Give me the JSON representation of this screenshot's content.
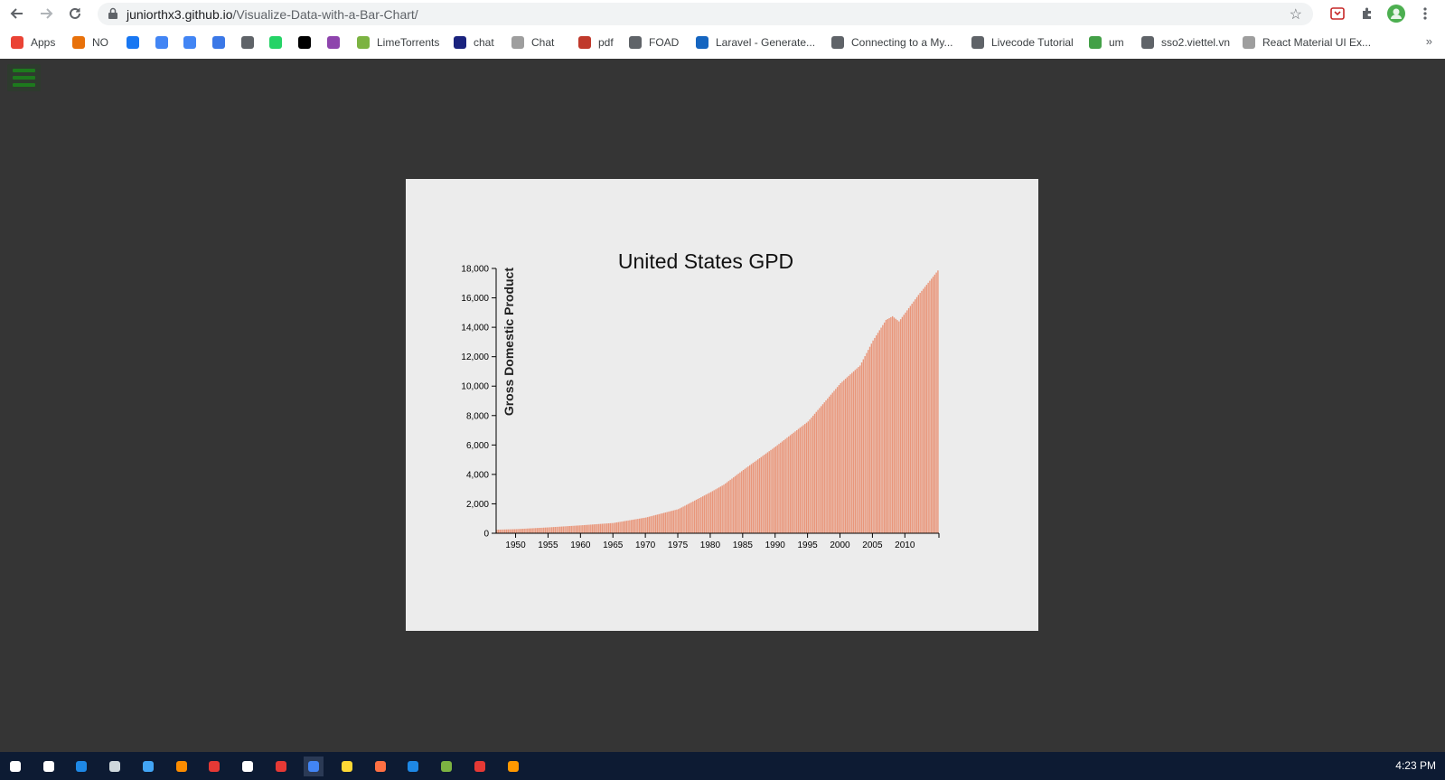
{
  "browser": {
    "url_host": "juniorthx3.github.io",
    "url_path": "/Visualize-Data-with-a-Bar-Chart/",
    "bookmarks": [
      {
        "label": "Apps",
        "color": "#ea4335"
      },
      {
        "label": "NO",
        "color": "#e8710a"
      },
      {
        "label": "",
        "color": "#1877f2"
      },
      {
        "label": "",
        "color": "#4285f4"
      },
      {
        "label": "",
        "color": "#4285f4"
      },
      {
        "label": "",
        "color": "#3b78e7"
      },
      {
        "label": "",
        "color": "#5f6368"
      },
      {
        "label": "",
        "color": "#25d366"
      },
      {
        "label": "",
        "color": "#000000"
      },
      {
        "label": "",
        "color": "#8e44ad"
      },
      {
        "label": "LimeTorrents",
        "color": "#7cb342"
      },
      {
        "label": "chat",
        "color": "#1a237e"
      },
      {
        "label": "Chat",
        "color": "#9e9e9e"
      },
      {
        "label": "pdf",
        "color": "#c0392b"
      },
      {
        "label": "FOAD",
        "color": "#5f6368"
      },
      {
        "label": "Laravel - Generate...",
        "color": "#1565c0"
      },
      {
        "label": "Connecting to a My...",
        "color": "#5f6368"
      },
      {
        "label": "Livecode Tutorial",
        "color": "#5f6368"
      },
      {
        "label": "um",
        "color": "#43a047"
      },
      {
        "label": "sso2.viettel.vn",
        "color": "#5f6368"
      },
      {
        "label": "React Material UI Ex...",
        "color": "#9e9e9e"
      }
    ],
    "more_label": "»"
  },
  "chart_data": {
    "type": "bar",
    "title": "United States GPD",
    "xlabel": "",
    "ylabel": "Gross Domestic Product",
    "xlim": [
      1947,
      2015.25
    ],
    "ylim": [
      0,
      18000
    ],
    "x_ticks": [
      1950,
      1955,
      1960,
      1965,
      1970,
      1975,
      1980,
      1985,
      1990,
      1995,
      2000,
      2005,
      2010
    ],
    "y_ticks": [
      0,
      2000,
      4000,
      6000,
      8000,
      10000,
      12000,
      14000,
      16000,
      18000
    ],
    "bar_color": "#e9967a",
    "grid": false,
    "frequency": "quarterly",
    "annual_points": [
      [
        1947,
        243
      ],
      [
        1950,
        280
      ],
      [
        1955,
        400
      ],
      [
        1960,
        540
      ],
      [
        1965,
        700
      ],
      [
        1970,
        1070
      ],
      [
        1975,
        1640
      ],
      [
        1980,
        2800
      ],
      [
        1982,
        3300
      ],
      [
        1985,
        4300
      ],
      [
        1990,
        5900
      ],
      [
        1995,
        7600
      ],
      [
        2000,
        10200
      ],
      [
        2001,
        10600
      ],
      [
        2003,
        11400
      ],
      [
        2005,
        13100
      ],
      [
        2007,
        14500
      ],
      [
        2008,
        14750
      ],
      [
        2009,
        14400
      ],
      [
        2010,
        15000
      ],
      [
        2012,
        16200
      ],
      [
        2014,
        17300
      ],
      [
        2015.25,
        18000
      ]
    ]
  },
  "taskbar": {
    "clock": "4:23 PM",
    "icons": [
      "windows-start",
      "cortana",
      "edge",
      "cmd",
      "mail",
      "xampp",
      "teamviewer",
      "store",
      "anydesk",
      "chrome",
      "explorer",
      "firefox",
      "vscode",
      "android-studio",
      "chrome-2",
      "sublime"
    ]
  }
}
